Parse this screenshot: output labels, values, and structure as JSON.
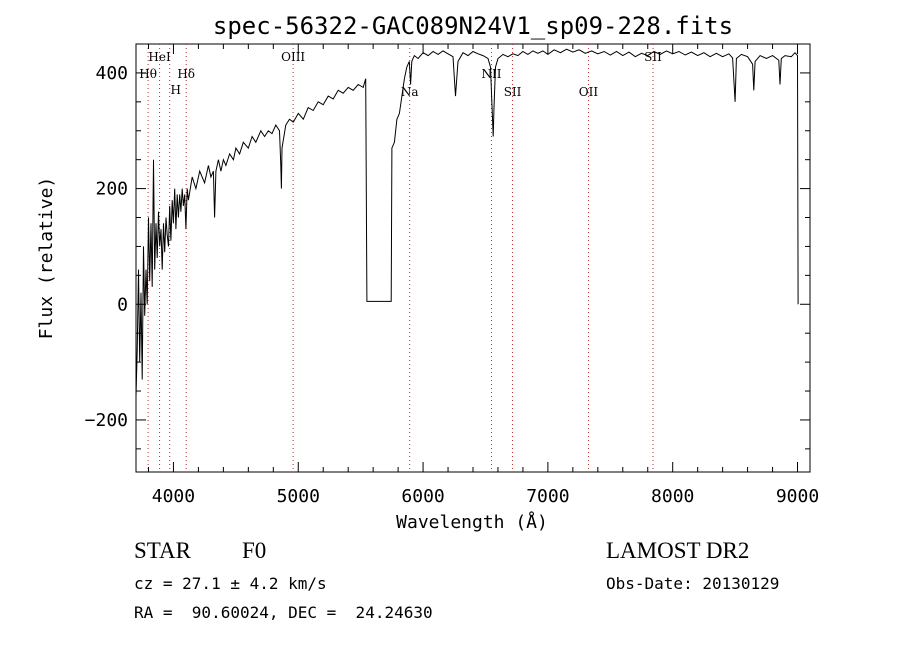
{
  "chart_data": {
    "type": "line",
    "title": "spec-56322-GAC089N24V1_sp09-228.fits",
    "xlabel": "Wavelength (Å)",
    "ylabel": "Flux (relative)",
    "xlim": [
      3700,
      9100
    ],
    "ylim": [
      -290,
      450
    ],
    "xticks": [
      4000,
      5000,
      6000,
      7000,
      8000,
      9000
    ],
    "yticks": [
      -200,
      0,
      200,
      400
    ],
    "grid": false,
    "series": [
      {
        "points": [
          [
            3700,
            -160
          ],
          [
            3710,
            -80
          ],
          [
            3720,
            60
          ],
          [
            3730,
            -100
          ],
          [
            3740,
            20
          ],
          [
            3750,
            -130
          ],
          [
            3760,
            100
          ],
          [
            3770,
            -20
          ],
          [
            3780,
            60
          ],
          [
            3790,
            0
          ],
          [
            3800,
            150
          ],
          [
            3810,
            40
          ],
          [
            3820,
            140
          ],
          [
            3830,
            30
          ],
          [
            3840,
            250
          ],
          [
            3850,
            60
          ],
          [
            3860,
            140
          ],
          [
            3870,
            80
          ],
          [
            3880,
            160
          ],
          [
            3890,
            100
          ],
          [
            3900,
            130
          ],
          [
            3910,
            60
          ],
          [
            3920,
            140
          ],
          [
            3930,
            90
          ],
          [
            3940,
            150
          ],
          [
            3950,
            120
          ],
          [
            3960,
            100
          ],
          [
            3970,
            170
          ],
          [
            3980,
            110
          ],
          [
            3990,
            180
          ],
          [
            4000,
            140
          ],
          [
            4010,
            200
          ],
          [
            4020,
            130
          ],
          [
            4030,
            190
          ],
          [
            4040,
            150
          ],
          [
            4050,
            190
          ],
          [
            4060,
            160
          ],
          [
            4070,
            200
          ],
          [
            4080,
            170
          ],
          [
            4090,
            190
          ],
          [
            4100,
            130
          ],
          [
            4110,
            200
          ],
          [
            4120,
            180
          ],
          [
            4150,
            220
          ],
          [
            4180,
            200
          ],
          [
            4210,
            230
          ],
          [
            4250,
            210
          ],
          [
            4280,
            240
          ],
          [
            4300,
            220
          ],
          [
            4320,
            230
          ],
          [
            4330,
            150
          ],
          [
            4340,
            230
          ],
          [
            4360,
            250
          ],
          [
            4380,
            230
          ],
          [
            4400,
            250
          ],
          [
            4420,
            240
          ],
          [
            4450,
            260
          ],
          [
            4480,
            250
          ],
          [
            4500,
            270
          ],
          [
            4530,
            260
          ],
          [
            4560,
            280
          ],
          [
            4600,
            270
          ],
          [
            4630,
            290
          ],
          [
            4660,
            280
          ],
          [
            4700,
            300
          ],
          [
            4730,
            290
          ],
          [
            4760,
            300
          ],
          [
            4790,
            295
          ],
          [
            4820,
            310
          ],
          [
            4850,
            300
          ],
          [
            4860,
            240
          ],
          [
            4865,
            200
          ],
          [
            4870,
            270
          ],
          [
            4900,
            310
          ],
          [
            4930,
            320
          ],
          [
            4960,
            315
          ],
          [
            5000,
            330
          ],
          [
            5040,
            320
          ],
          [
            5080,
            340
          ],
          [
            5120,
            335
          ],
          [
            5160,
            350
          ],
          [
            5200,
            345
          ],
          [
            5240,
            360
          ],
          [
            5280,
            355
          ],
          [
            5320,
            370
          ],
          [
            5360,
            365
          ],
          [
            5400,
            375
          ],
          [
            5440,
            370
          ],
          [
            5480,
            380
          ],
          [
            5520,
            375
          ],
          [
            5540,
            390
          ],
          [
            5550,
            5
          ],
          [
            5600,
            5
          ],
          [
            5650,
            5
          ],
          [
            5700,
            5
          ],
          [
            5745,
            5
          ],
          [
            5750,
            270
          ],
          [
            5770,
            280
          ],
          [
            5790,
            320
          ],
          [
            5810,
            330
          ],
          [
            5830,
            360
          ],
          [
            5850,
            390
          ],
          [
            5870,
            410
          ],
          [
            5890,
            420
          ],
          [
            5900,
            380
          ],
          [
            5910,
            420
          ],
          [
            5930,
            430
          ],
          [
            5960,
            425
          ],
          [
            6000,
            435
          ],
          [
            6040,
            430
          ],
          [
            6080,
            437
          ],
          [
            6120,
            432
          ],
          [
            6160,
            438
          ],
          [
            6200,
            433
          ],
          [
            6240,
            428
          ],
          [
            6260,
            360
          ],
          [
            6280,
            420
          ],
          [
            6320,
            435
          ],
          [
            6360,
            430
          ],
          [
            6400,
            437
          ],
          [
            6440,
            433
          ],
          [
            6480,
            430
          ],
          [
            6520,
            425
          ],
          [
            6540,
            410
          ],
          [
            6555,
            330
          ],
          [
            6562,
            290
          ],
          [
            6568,
            340
          ],
          [
            6580,
            410
          ],
          [
            6600,
            425
          ],
          [
            6640,
            432
          ],
          [
            6680,
            428
          ],
          [
            6720,
            433
          ],
          [
            6760,
            430
          ],
          [
            6800,
            437
          ],
          [
            6840,
            432
          ],
          [
            6880,
            438
          ],
          [
            6920,
            434
          ],
          [
            6960,
            438
          ],
          [
            7000,
            432
          ],
          [
            7050,
            440
          ],
          [
            7100,
            435
          ],
          [
            7150,
            441
          ],
          [
            7200,
            436
          ],
          [
            7250,
            440
          ],
          [
            7300,
            434
          ],
          [
            7350,
            438
          ],
          [
            7400,
            433
          ],
          [
            7450,
            437
          ],
          [
            7500,
            431
          ],
          [
            7550,
            437
          ],
          [
            7600,
            430
          ],
          [
            7650,
            436
          ],
          [
            7700,
            428
          ],
          [
            7750,
            434
          ],
          [
            7800,
            430
          ],
          [
            7850,
            437
          ],
          [
            7900,
            432
          ],
          [
            7950,
            438
          ],
          [
            8000,
            433
          ],
          [
            8050,
            437
          ],
          [
            8100,
            431
          ],
          [
            8150,
            436
          ],
          [
            8200,
            430
          ],
          [
            8250,
            435
          ],
          [
            8300,
            428
          ],
          [
            8350,
            434
          ],
          [
            8400,
            428
          ],
          [
            8450,
            433
          ],
          [
            8480,
            426
          ],
          [
            8500,
            350
          ],
          [
            8510,
            425
          ],
          [
            8550,
            432
          ],
          [
            8600,
            428
          ],
          [
            8640,
            415
          ],
          [
            8650,
            370
          ],
          [
            8660,
            420
          ],
          [
            8700,
            430
          ],
          [
            8750,
            425
          ],
          [
            8800,
            430
          ],
          [
            8850,
            422
          ],
          [
            8860,
            380
          ],
          [
            8870,
            425
          ],
          [
            8900,
            430
          ],
          [
            8950,
            428
          ],
          [
            8980,
            435
          ],
          [
            9000,
            430
          ],
          [
            9005,
            0
          ]
        ]
      }
    ],
    "line_markers": [
      {
        "label": "Hθ",
        "x": 3797
      },
      {
        "label": "HeI",
        "x": 3889
      },
      {
        "label": "H",
        "x": 3970
      },
      {
        "label": "Hδ",
        "x": 4102
      },
      {
        "label": "OIII",
        "x": 4959
      },
      {
        "label": "Na",
        "x": 5893
      },
      {
        "label": "NII",
        "x": 6548
      },
      {
        "label": "SII",
        "x": 6717
      },
      {
        "label": "OII",
        "x": 7325
      },
      {
        "label": "SII",
        "x": 7842
      }
    ]
  },
  "info": {
    "object_class": "STAR",
    "subclass": "F0",
    "survey": "LAMOST DR2",
    "velocity": "cz = 27.1 ± 4.2 km/s",
    "obs_date": "Obs-Date: 20130129",
    "coords": "RA =  90.60024, DEC =  24.24630"
  }
}
